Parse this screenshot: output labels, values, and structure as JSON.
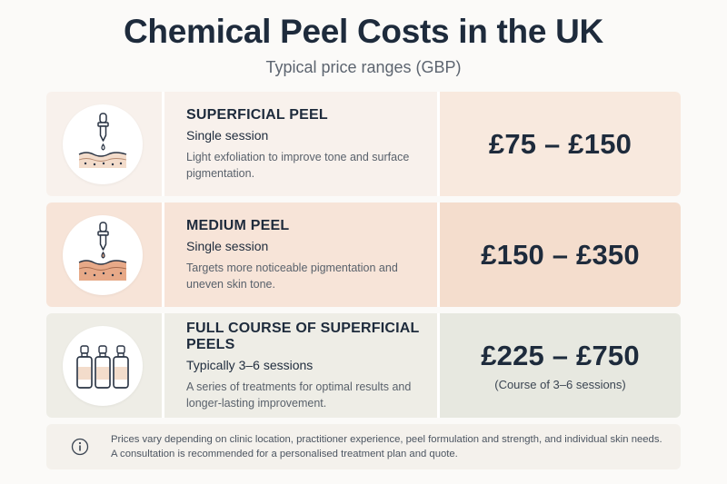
{
  "header": {
    "title": "Chemical Peel Costs in the UK",
    "subtitle": "Typical price ranges (GBP)"
  },
  "rows": [
    {
      "icon": "dropper-skin-icon",
      "name": "SUPERFICIAL PEEL",
      "sessions": "Single session",
      "description": "Light exfoliation to improve tone and surface pigmentation.",
      "price": "£75 – £150",
      "price_note": ""
    },
    {
      "icon": "dropper-skin-icon",
      "name": "MEDIUM PEEL",
      "sessions": "Single session",
      "description": "Targets more noticeable pigmentation and uneven skin tone.",
      "price": "£150 – £350",
      "price_note": ""
    },
    {
      "icon": "serum-bottles-icon",
      "name": "FULL COURSE OF SUPERFICIAL PEELS",
      "sessions": "Typically 3–6 sessions",
      "description": "A series of treatments for optimal results and longer-lasting improvement.",
      "price": "£225 – £750",
      "price_note": "(Course of 3–6 sessions)"
    }
  ],
  "footer_note": {
    "icon": "info-icon",
    "text": "Prices vary depending on clinic location, practitioner experience, peel formulation and strength, and individual skin needs. A consultation is recommended for a personalised treatment plan and quote."
  },
  "colors": {
    "heading": "#1e2b3c",
    "row1": "#f8f1ec",
    "row2": "#f7e4d8",
    "row3": "#eeede6",
    "skin_light": "#f3dccb",
    "skin_medium": "#e7a988"
  }
}
